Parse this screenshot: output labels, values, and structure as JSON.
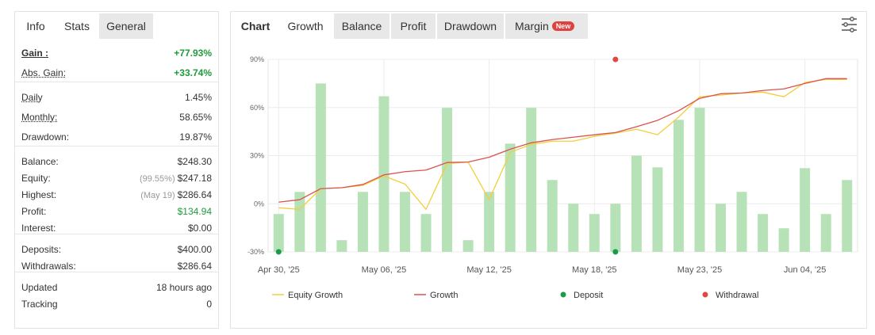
{
  "left_tabs": [
    "Info",
    "Stats",
    "General"
  ],
  "stats": [
    [
      {
        "label": "Gain :",
        "value": "+77.93%",
        "color": "#1e9b3b",
        "underline": "solid",
        "bold": true
      },
      {
        "label": "Abs. Gain:",
        "value": "+33.74%",
        "color": "#1e9b3b",
        "underline": "dotted"
      }
    ],
    [
      {
        "label": "Daily",
        "value": "1.45%",
        "underline": "dotted"
      },
      {
        "label": "Monthly:",
        "value": "58.65%",
        "underline": "dotted"
      },
      {
        "label": "Drawdown:",
        "value": "19.87%"
      }
    ],
    [
      {
        "label": "Balance:",
        "value": "$248.30"
      },
      {
        "label": "Equity:",
        "note": "(99.55%)",
        "value": "$247.18"
      },
      {
        "label": "Highest:",
        "note": "(May 19)",
        "value": "$286.64"
      },
      {
        "label": "Profit:",
        "value": "$134.94",
        "color": "#1e9b3b"
      },
      {
        "label": "Interest:",
        "value": "$0.00"
      }
    ],
    [
      {
        "label": "Deposits:",
        "value": "$400.00"
      },
      {
        "label": "Withdrawals:",
        "value": "$286.64"
      }
    ],
    [
      {
        "label": "Updated",
        "value": "18 hours ago"
      },
      {
        "label": "Tracking",
        "value": "0"
      }
    ]
  ],
  "right_tabs": [
    "Chart",
    "Growth",
    "Balance",
    "Profit",
    "Drawdown",
    "Margin"
  ],
  "badge": "New",
  "chart_data": {
    "type": "bar",
    "categories": [
      "Apr 30, '25",
      null,
      null,
      null,
      null,
      "May 06, '25",
      null,
      null,
      null,
      null,
      "May 12, '25",
      null,
      null,
      null,
      null,
      "May 18, '25",
      null,
      null,
      null,
      null,
      "May 23, '25",
      null,
      null,
      null,
      null,
      "Jun 04, '25",
      null,
      null
    ],
    "values": [
      -6.4,
      7.4,
      75,
      -22.7,
      7.4,
      67,
      7.4,
      -6.4,
      59.8,
      -22.7,
      7.4,
      37.5,
      59.8,
      14.8,
      0,
      -6.4,
      0,
      30,
      22.7,
      52.3,
      59.8,
      0,
      7.4,
      -6.4,
      -15.3,
      22.2,
      -6.4,
      14.8
    ],
    "color": "#b7e2b7",
    "series": [
      {
        "name": "Equity Growth",
        "color": "#f2cf3a",
        "values": [
          -2.5,
          -3.5,
          9.4,
          10,
          11.4,
          17.3,
          12.3,
          -3.5,
          25,
          26,
          2.5,
          32,
          37,
          39,
          39,
          42,
          44,
          46.4,
          43,
          54,
          66.7,
          67.7,
          69,
          69.6,
          66.7,
          75.6,
          77.5,
          77.5
        ]
      },
      {
        "name": "Growth",
        "color": "#d9534f",
        "values": [
          1,
          2.5,
          9.4,
          10,
          12,
          18,
          20,
          21,
          25.7,
          26,
          29,
          34,
          38,
          40,
          41.5,
          43,
          44.4,
          48,
          52,
          58,
          65.7,
          68.6,
          69,
          70.6,
          71.6,
          75,
          78,
          78
        ]
      }
    ],
    "markers": [
      {
        "name": "Deposit",
        "color": "#1a9a4a"
      },
      {
        "name": "Withdrawal",
        "color": "#e04848"
      }
    ],
    "ylim": [
      -30,
      90
    ],
    "yticks": [
      {
        "value": -30,
        "label": "-30%"
      },
      {
        "value": 0,
        "label": "0%"
      },
      {
        "value": 30,
        "label": "30%"
      },
      {
        "value": 60,
        "label": "60%"
      },
      {
        "value": 90,
        "label": "90%"
      }
    ],
    "grid": true
  }
}
